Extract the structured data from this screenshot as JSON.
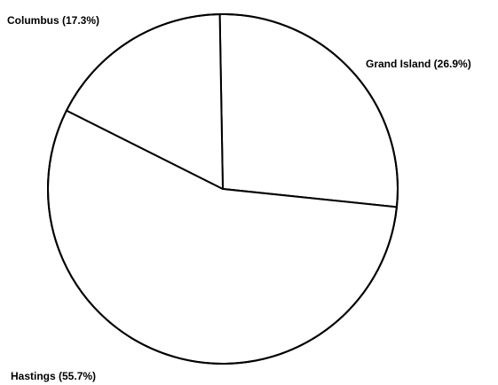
{
  "chart_data": {
    "type": "pie",
    "title": "",
    "slices": [
      {
        "label": "Grand Island (26.9%)",
        "name": "Grand Island",
        "value": 26.9
      },
      {
        "label": "Hastings (55.7%)",
        "name": "Hastings",
        "value": 55.7
      },
      {
        "label": "Columbus (17.3%)",
        "name": "Columbus",
        "value": 17.3
      }
    ],
    "start": "12 o'clock",
    "direction": "clockwise",
    "fill_color": "#ffffff",
    "line_color": "#000000"
  }
}
